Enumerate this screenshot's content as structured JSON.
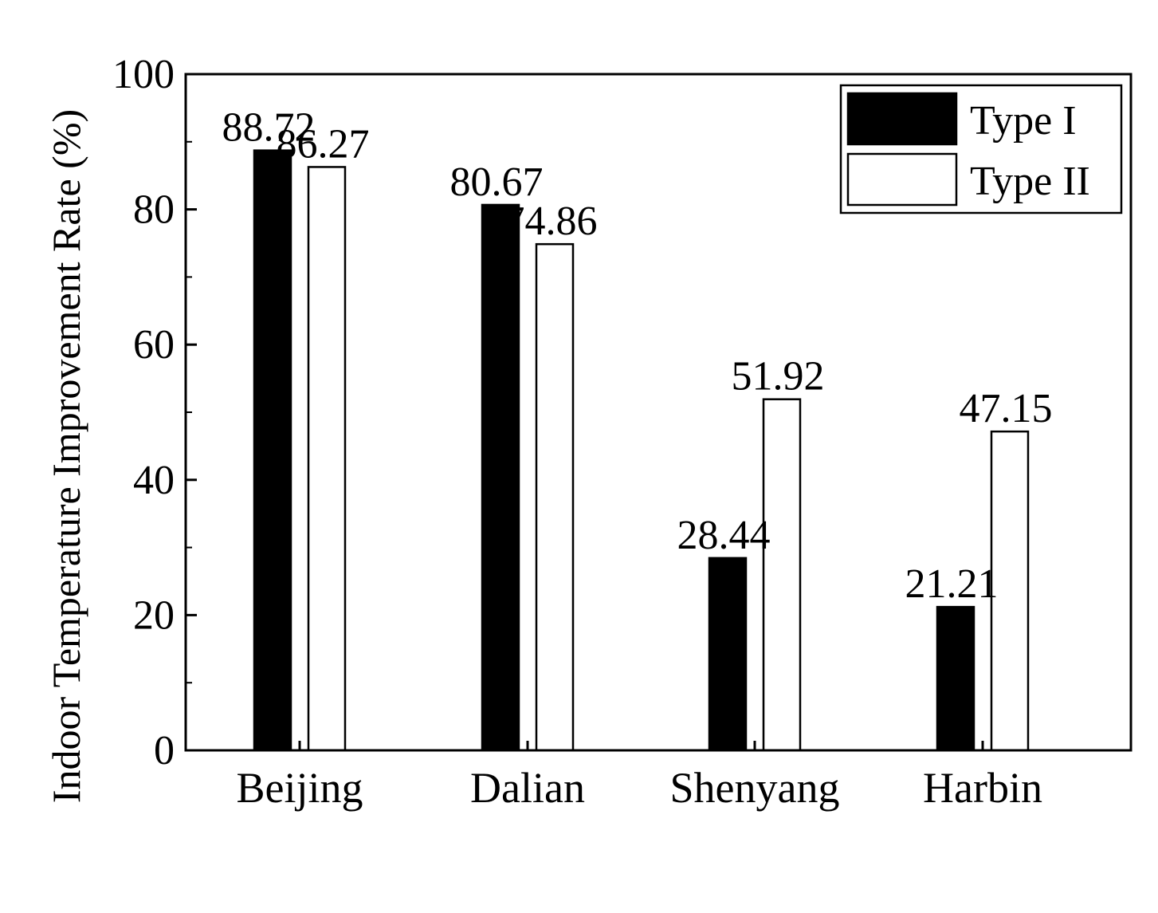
{
  "chart_data": {
    "type": "bar",
    "title": "",
    "xlabel": "",
    "ylabel": "Indoor Temperature Improvement Rate (%)",
    "categories": [
      "Beijing",
      "Dalian",
      "Shenyang",
      "Harbin"
    ],
    "series": [
      {
        "name": "Type I",
        "values": [
          88.72,
          80.67,
          28.44,
          21.21
        ],
        "color": "#000000"
      },
      {
        "name": "Type II",
        "values": [
          86.27,
          74.86,
          51.92,
          47.15
        ],
        "color": "#ffffff"
      }
    ],
    "value_labels": [
      [
        "88.72",
        "80.67",
        "28.44",
        "21.21"
      ],
      [
        "86.27",
        "74.86",
        "51.92",
        "47.15"
      ]
    ],
    "ylim": [
      0,
      100
    ],
    "yticks": [
      0,
      20,
      40,
      60,
      80,
      100
    ],
    "yticks_labels": [
      "0",
      "20",
      "40",
      "60",
      "80",
      "100"
    ],
    "grid": false,
    "legend_position": "top-right"
  }
}
